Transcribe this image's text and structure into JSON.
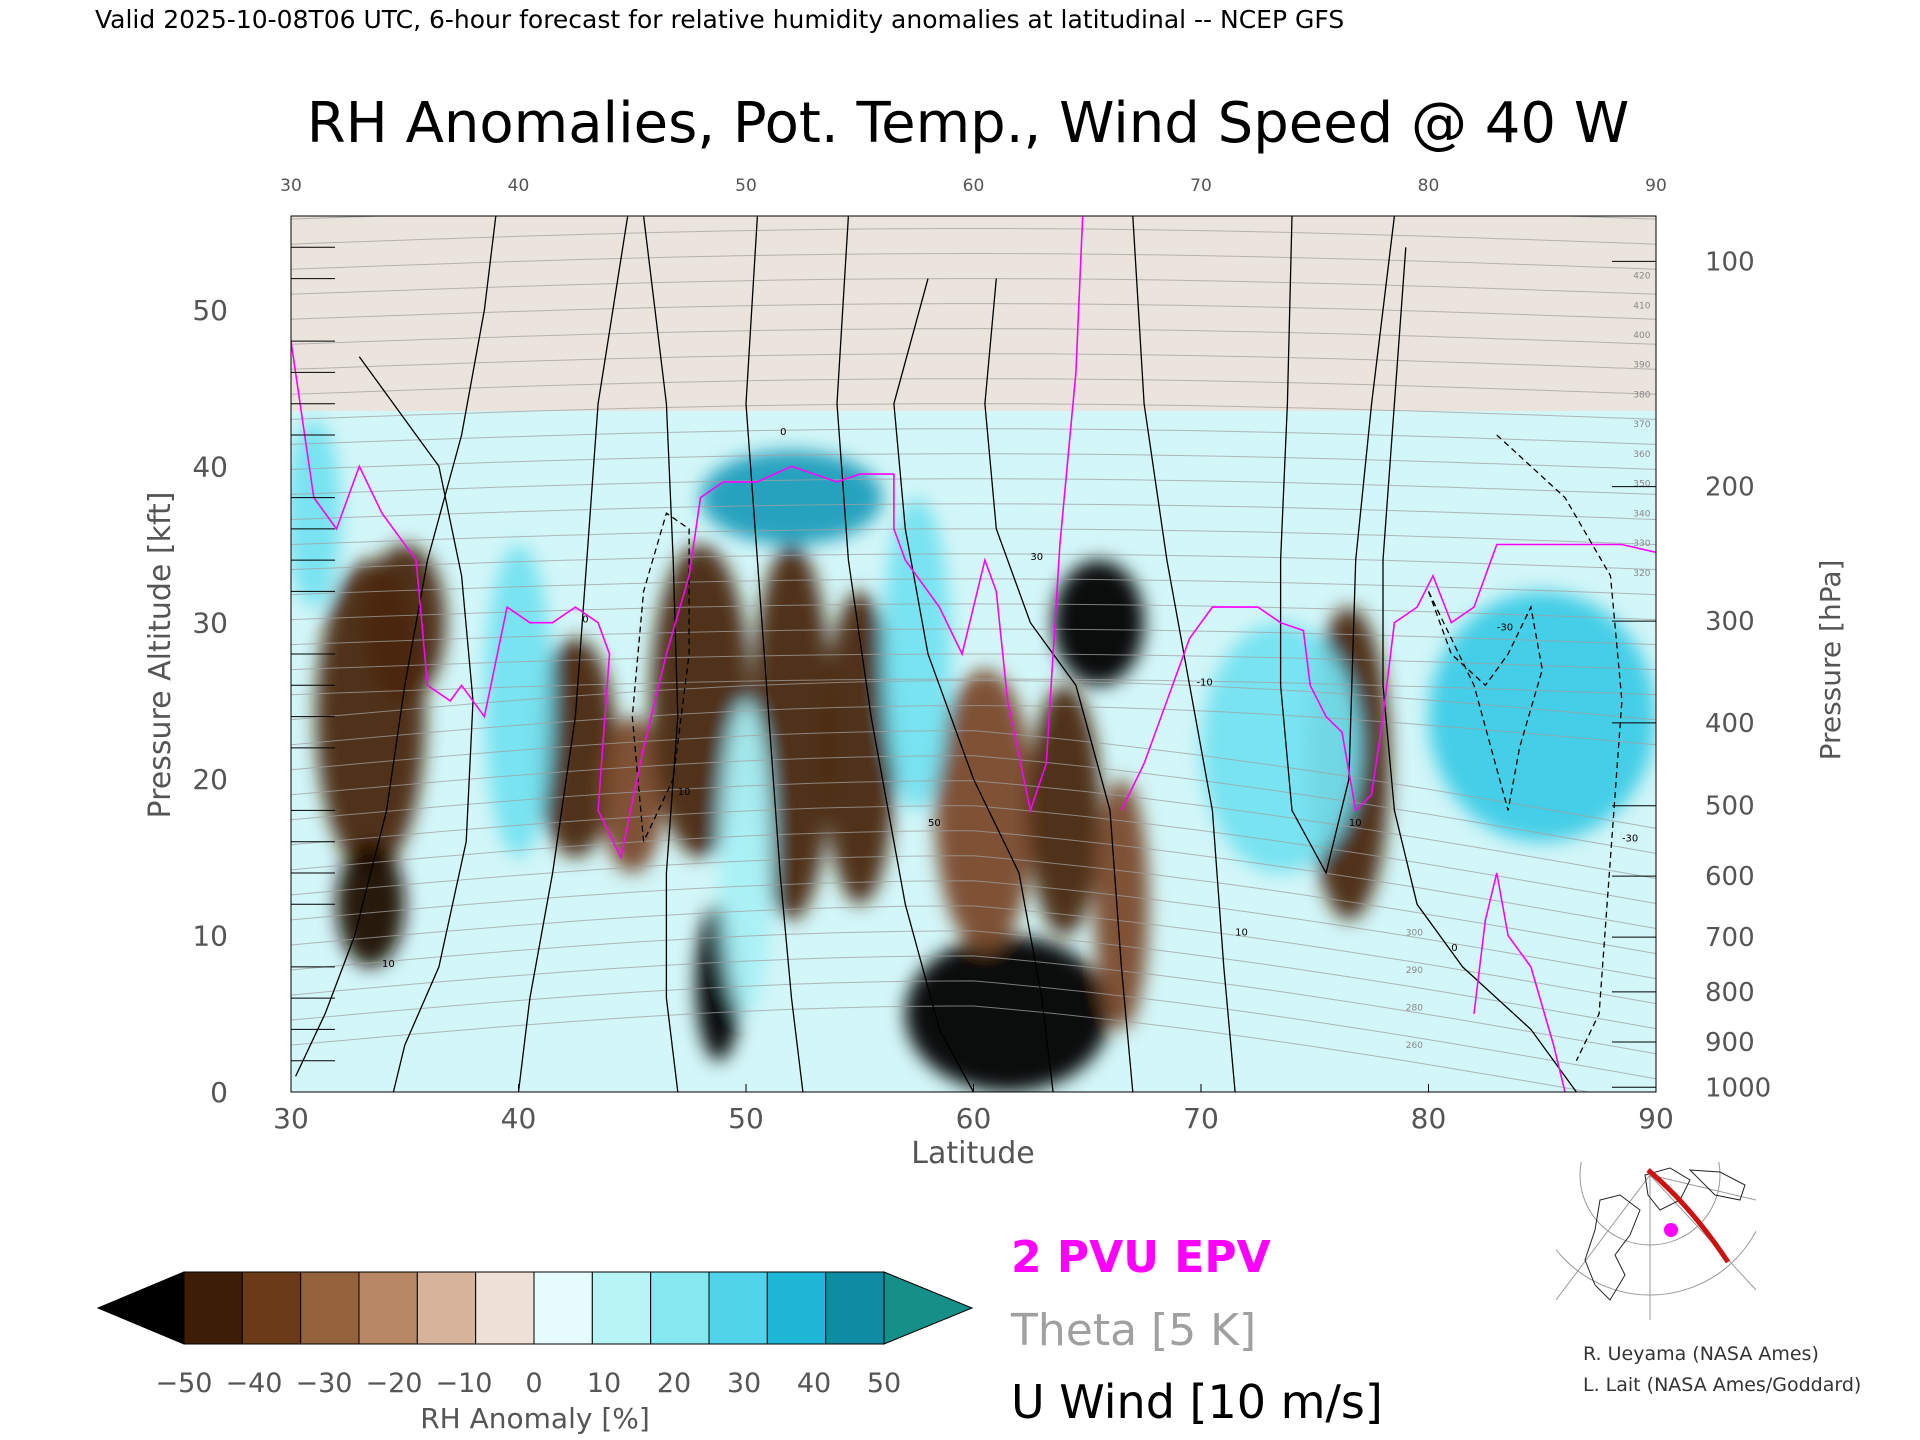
{
  "header": "Valid 2025-10-08T06 UTC, 6-hour forecast for relative humidity anomalies at latitudinal -- NCEP GFS",
  "chart_data": {
    "type": "heatmap",
    "title": "RH Anomalies, Pot. Temp., Wind Speed @ 40 W",
    "xlabel": "Latitude",
    "ylabel": "Pressure Altitude [kft]",
    "y2label": "Pressure [hPa]",
    "xlim": [
      30,
      90
    ],
    "ylim": [
      0,
      56
    ],
    "x_ticks": [
      "30",
      "40",
      "50",
      "60",
      "70",
      "80",
      "90"
    ],
    "x_ticks_top": [
      "30",
      "40",
      "50",
      "60",
      "70",
      "80",
      "90"
    ],
    "y_ticks": [
      "0",
      "10",
      "20",
      "30",
      "40",
      "50"
    ],
    "pressure_ticks": [
      {
        "label": "100",
        "kft": 53.1
      },
      {
        "label": "200",
        "kft": 38.7
      },
      {
        "label": "300",
        "kft": 30.1
      },
      {
        "label": "400",
        "kft": 23.6
      },
      {
        "label": "500",
        "kft": 18.3
      },
      {
        "label": "600",
        "kft": 13.8
      },
      {
        "label": "700",
        "kft": 9.9
      },
      {
        "label": "800",
        "kft": 6.4
      },
      {
        "label": "900",
        "kft": 3.2
      },
      {
        "label": "1000",
        "kft": 0.3
      }
    ],
    "theta_labels": [
      "420",
      "410",
      "400",
      "390",
      "380",
      "370",
      "360",
      "350",
      "340",
      "330",
      "320",
      "300",
      "290",
      "280",
      "260"
    ],
    "wind_labels": [
      "0",
      "10",
      "-10",
      "30",
      "-30",
      "50"
    ],
    "rh_blobs": [
      {
        "lat": 33.5,
        "kft": 24,
        "w": 2.4,
        "h": 10,
        "val": -40
      },
      {
        "lat": 33.5,
        "kft": 12,
        "w": 1.5,
        "h": 4,
        "val": -50
      },
      {
        "lat": 35.0,
        "kft": 30,
        "w": 1.8,
        "h": 5,
        "val": -35
      },
      {
        "lat": 42.5,
        "kft": 22,
        "w": 1.8,
        "h": 7,
        "val": -35
      },
      {
        "lat": 45.0,
        "kft": 19,
        "w": 1.4,
        "h": 5,
        "val": -30
      },
      {
        "lat": 48.0,
        "kft": 25,
        "w": 2.2,
        "h": 10,
        "val": -40
      },
      {
        "lat": 48.8,
        "kft": 7,
        "w": 1.0,
        "h": 5,
        "val": -60
      },
      {
        "lat": 52.0,
        "kft": 23,
        "w": 1.8,
        "h": 12,
        "val": -40
      },
      {
        "lat": 55.0,
        "kft": 22,
        "w": 1.6,
        "h": 10,
        "val": -35
      },
      {
        "lat": 61.5,
        "kft": 5,
        "w": 4.5,
        "h": 5,
        "val": -60
      },
      {
        "lat": 60.5,
        "kft": 18,
        "w": 2.2,
        "h": 9,
        "val": -25
      },
      {
        "lat": 64.0,
        "kft": 18,
        "w": 1.6,
        "h": 8,
        "val": -35
      },
      {
        "lat": 65.5,
        "kft": 30,
        "w": 2.0,
        "h": 4,
        "val": -60
      },
      {
        "lat": 66.5,
        "kft": 12,
        "w": 1.2,
        "h": 8,
        "val": -30
      },
      {
        "lat": 76.5,
        "kft": 21,
        "w": 1.8,
        "h": 10,
        "val": -40
      },
      {
        "lat": 52.0,
        "kft": 38,
        "w": 4.0,
        "h": 3,
        "val": 50
      },
      {
        "lat": 40.0,
        "kft": 25,
        "w": 1.5,
        "h": 10,
        "val": 30
      },
      {
        "lat": 50.0,
        "kft": 15,
        "w": 1.2,
        "h": 10,
        "val": 25
      },
      {
        "lat": 57.5,
        "kft": 28,
        "w": 1.5,
        "h": 10,
        "val": 30
      },
      {
        "lat": 73.5,
        "kft": 22,
        "w": 3.5,
        "h": 8,
        "val": 35
      },
      {
        "lat": 85.0,
        "kft": 24,
        "w": 5.0,
        "h": 8,
        "val": 40
      },
      {
        "lat": 31.0,
        "kft": 37,
        "w": 1.2,
        "h": 6,
        "val": 35
      }
    ],
    "tropopause": [
      [
        30,
        48
      ],
      [
        31,
        38
      ],
      [
        32,
        36
      ],
      [
        33,
        40
      ],
      [
        34,
        37
      ],
      [
        35,
        35
      ],
      [
        35.5,
        34
      ],
      [
        36,
        26
      ],
      [
        37,
        25
      ],
      [
        37.5,
        26
      ],
      [
        38.5,
        24
      ],
      [
        39.5,
        31
      ],
      [
        40.5,
        30
      ],
      [
        41.5,
        30
      ],
      [
        42.5,
        31
      ],
      [
        43.5,
        30
      ],
      [
        44,
        28
      ],
      [
        43.5,
        18
      ],
      [
        44.5,
        15
      ],
      [
        45.5,
        22
      ],
      [
        46.5,
        28
      ],
      [
        47.5,
        33
      ],
      [
        48,
        38
      ],
      [
        49,
        39
      ],
      [
        50.5,
        39
      ],
      [
        52,
        40
      ],
      [
        54,
        39
      ],
      [
        55,
        39.5
      ],
      [
        56.5,
        39.5
      ],
      [
        56.5,
        36
      ],
      [
        57,
        34
      ],
      [
        58.5,
        31
      ],
      [
        59.5,
        28
      ],
      [
        60.5,
        34
      ],
      [
        61,
        32
      ],
      [
        61.5,
        25
      ],
      [
        62.5,
        18
      ],
      [
        63.2,
        21
      ],
      [
        63.8,
        35
      ],
      [
        64.5,
        46
      ],
      [
        64.8,
        56
      ]
    ],
    "tropopause2": [
      [
        66.5,
        18
      ],
      [
        67.5,
        21
      ],
      [
        68.5,
        25
      ],
      [
        69.5,
        29
      ],
      [
        70.5,
        31
      ],
      [
        72.5,
        31
      ],
      [
        73.5,
        30
      ],
      [
        74.5,
        29.5
      ],
      [
        74.8,
        26
      ],
      [
        75.5,
        24
      ],
      [
        76.2,
        23
      ],
      [
        76.8,
        18
      ],
      [
        77.5,
        19
      ],
      [
        78,
        24
      ],
      [
        78.5,
        30
      ],
      [
        79.5,
        31
      ],
      [
        80.2,
        33
      ],
      [
        81,
        30
      ],
      [
        82,
        31
      ],
      [
        83,
        35
      ],
      [
        85,
        35
      ],
      [
        87,
        35
      ],
      [
        88.5,
        35
      ],
      [
        90,
        34.5
      ]
    ],
    "tropopause3": [
      [
        82,
        5
      ],
      [
        82.5,
        11
      ],
      [
        83,
        14
      ],
      [
        83.5,
        10
      ],
      [
        84.5,
        8
      ],
      [
        85.5,
        3
      ],
      [
        86,
        0
      ]
    ],
    "wind_contours": [
      [
        [
          30.2,
          1
        ],
        [
          31.5,
          5
        ],
        [
          32.8,
          10
        ],
        [
          34.2,
          18
        ],
        [
          35,
          26
        ],
        [
          36,
          34
        ],
        [
          37.5,
          42
        ],
        [
          38.5,
          50
        ],
        [
          39,
          56
        ]
      ],
      [
        [
          33,
          47
        ],
        [
          35,
          43
        ],
        [
          36.5,
          40
        ],
        [
          37.5,
          33
        ],
        [
          38,
          25
        ],
        [
          37.7,
          16
        ],
        [
          36.5,
          8
        ],
        [
          35,
          3
        ],
        [
          34.5,
          0
        ]
      ],
      [
        [
          40,
          0
        ],
        [
          40.5,
          6
        ],
        [
          41.5,
          14
        ],
        [
          42.5,
          24
        ],
        [
          43,
          34
        ],
        [
          43.5,
          44
        ],
        [
          44.8,
          56
        ]
      ],
      [
        [
          45.5,
          56
        ],
        [
          46.5,
          44
        ],
        [
          46.8,
          34
        ],
        [
          47,
          24
        ],
        [
          46.5,
          14
        ],
        [
          46.5,
          6
        ],
        [
          47,
          0
        ]
      ],
      [
        [
          50.5,
          56
        ],
        [
          50,
          44
        ],
        [
          50.5,
          34
        ],
        [
          51,
          24
        ],
        [
          51.5,
          14
        ],
        [
          52,
          6
        ],
        [
          52.5,
          0
        ]
      ],
      [
        [
          54.5,
          56
        ],
        [
          54,
          44
        ],
        [
          54.5,
          34
        ],
        [
          55.5,
          24
        ],
        [
          57,
          12
        ],
        [
          58.5,
          4
        ],
        [
          60,
          0
        ]
      ],
      [
        [
          58,
          52
        ],
        [
          56.5,
          44
        ],
        [
          57,
          36
        ],
        [
          58,
          28
        ],
        [
          60,
          20
        ],
        [
          62,
          14
        ],
        [
          63,
          6
        ],
        [
          63.5,
          0
        ]
      ],
      [
        [
          61,
          52
        ],
        [
          60.5,
          44
        ],
        [
          61,
          36
        ],
        [
          62.5,
          30
        ],
        [
          64.5,
          26
        ],
        [
          66,
          18
        ],
        [
          66.5,
          8
        ],
        [
          67,
          0
        ]
      ],
      [
        [
          67,
          56
        ],
        [
          67.5,
          44
        ],
        [
          68.5,
          34
        ],
        [
          69.5,
          26
        ],
        [
          70.5,
          18
        ],
        [
          71,
          8
        ],
        [
          71.5,
          0
        ]
      ],
      [
        [
          74,
          56
        ],
        [
          73.8,
          44
        ],
        [
          73.5,
          34
        ],
        [
          73.5,
          26
        ],
        [
          74,
          18
        ],
        [
          75.5,
          14
        ],
        [
          76.5,
          20
        ],
        [
          76.8,
          34
        ],
        [
          77.5,
          44
        ],
        [
          78.5,
          56
        ]
      ],
      [
        [
          79,
          54
        ],
        [
          78.5,
          44
        ],
        [
          78,
          34
        ],
        [
          78,
          26
        ],
        [
          78.5,
          18
        ],
        [
          79.5,
          12
        ],
        [
          81.5,
          8
        ],
        [
          84.5,
          4
        ],
        [
          86.5,
          0
        ]
      ]
    ],
    "wind_dashed": [
      [
        [
          45.5,
          16
        ],
        [
          45,
          24
        ],
        [
          45.5,
          32
        ],
        [
          46.5,
          37
        ],
        [
          47.5,
          36
        ],
        [
          47.5,
          28
        ],
        [
          46.8,
          20
        ],
        [
          45.5,
          16
        ]
      ],
      [
        [
          80,
          32
        ],
        [
          81,
          28
        ],
        [
          82.5,
          26
        ],
        [
          83.5,
          28
        ],
        [
          84.5,
          31
        ],
        [
          85,
          27
        ],
        [
          84,
          22
        ],
        [
          83.5,
          18
        ],
        [
          82,
          26
        ],
        [
          80,
          32
        ]
      ],
      [
        [
          83,
          42
        ],
        [
          86,
          38
        ],
        [
          88,
          33
        ],
        [
          88.5,
          25
        ],
        [
          88,
          15
        ],
        [
          87.5,
          5
        ],
        [
          86.5,
          2
        ]
      ]
    ],
    "minimap": {
      "credit1": "R. Ueyama (NASA Ames)",
      "credit2": "L. Lait (NASA Ames/Goddard)"
    },
    "colorbar": {
      "label": "RH Anomaly [%]",
      "ticks": [
        "−50",
        "−40",
        "−30",
        "−20",
        "−10",
        "0",
        "10",
        "20",
        "30",
        "40",
        "50"
      ],
      "colors": [
        "#000000",
        "#3d1c08",
        "#6b3a18",
        "#94623d",
        "#b88766",
        "#d7b39b",
        "#eee0d5",
        "#e6fbfb",
        "#b8f3f6",
        "#86e7f0",
        "#4fd4ea",
        "#20b6d8",
        "#0f8ca3",
        "#158f88"
      ]
    },
    "legend": [
      {
        "label": "2 PVU EPV",
        "color": "#ff00ff"
      },
      {
        "label": "Theta [5 K]",
        "color": "#a0a0a0"
      },
      {
        "label": "U Wind [10 m/s]",
        "color": "#000000"
      }
    ]
  }
}
